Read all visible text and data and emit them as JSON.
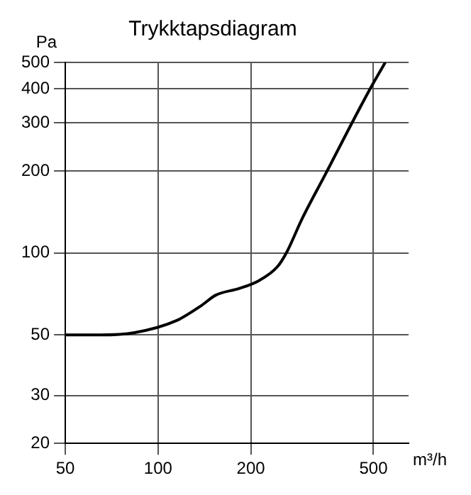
{
  "chart_data": {
    "type": "line",
    "title": "Trykktapsdiagram",
    "ylabel": "Pa",
    "xlabel": "m³/h",
    "log": "xy",
    "x": [
      50,
      65,
      84,
      115,
      138,
      154,
      183,
      212,
      244,
      262,
      292,
      348,
      480,
      546
    ],
    "series": [
      {
        "color": "#000000",
        "values": [
          50,
          50,
          51,
          56.5,
          64,
          70,
          74,
          79,
          89,
          101,
          132,
          193,
          387,
          500
        ]
      }
    ],
    "xlim": [
      50,
      650
    ],
    "xticks": [
      50,
      100,
      200,
      500
    ],
    "ylim": [
      20,
      500
    ],
    "yticks": [
      20,
      30,
      50,
      100,
      200,
      300,
      400,
      500
    ],
    "grid": true,
    "marker": "none",
    "line_style": "solid",
    "legend": false
  }
}
